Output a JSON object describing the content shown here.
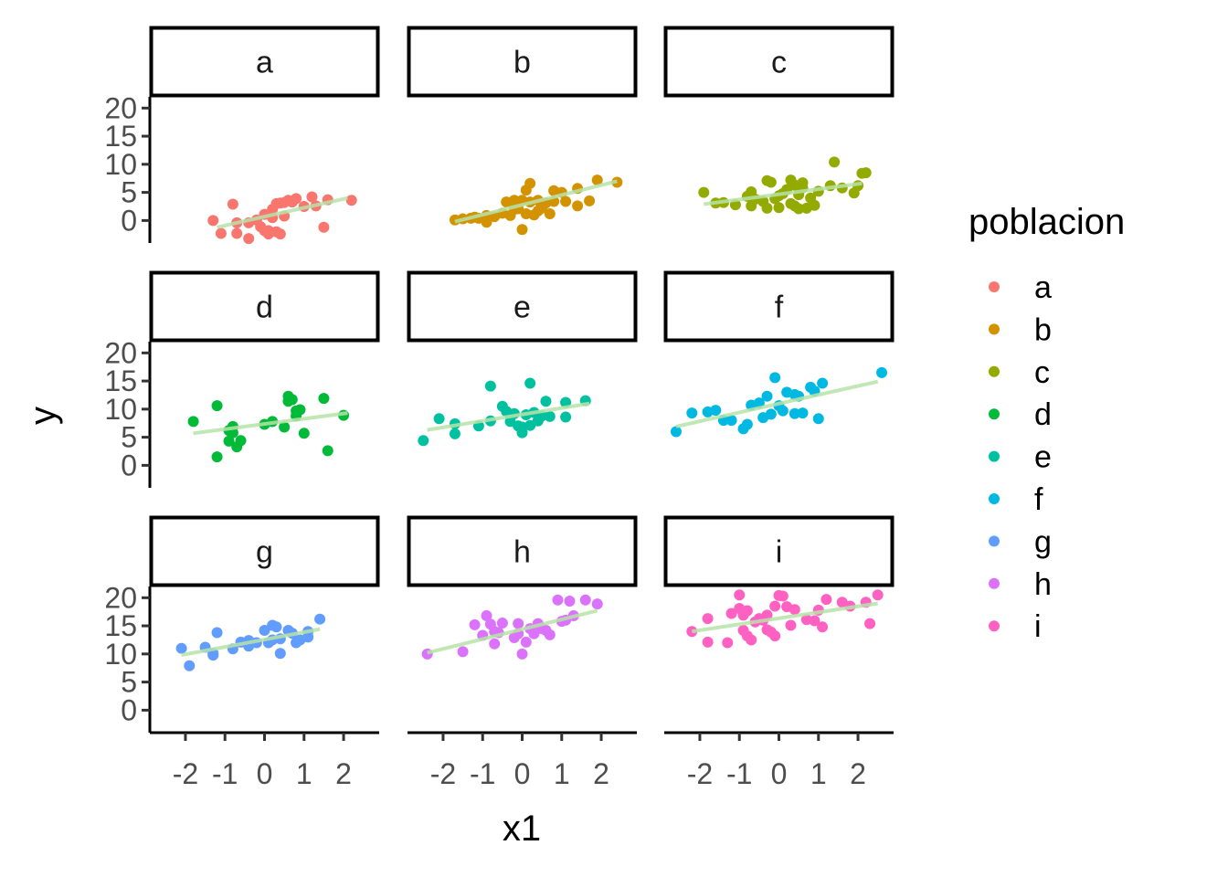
{
  "chart_data": {
    "type": "scatter",
    "facet_by": "poblacion",
    "xlabel": "x1",
    "ylabel": "y",
    "xlim": [
      -2.9,
      2.9
    ],
    "ylim": [
      -4,
      22
    ],
    "xticks": [
      -2,
      -1,
      0,
      1,
      2
    ],
    "xtick_labels": [
      "-2",
      "-1",
      "0",
      "1",
      "2"
    ],
    "yticks": [
      0,
      5,
      10,
      15,
      20
    ],
    "ytick_labels": [
      "0",
      "5",
      "10",
      "15",
      "20"
    ],
    "grid": false,
    "legend": {
      "title": "poblacion",
      "position": "right",
      "entries": [
        "a",
        "b",
        "c",
        "d",
        "e",
        "f",
        "g",
        "h",
        "i"
      ]
    },
    "trend_line_color": "#b6e3a8",
    "panels": [
      {
        "name": "a",
        "color": "#F8766D",
        "trend": {
          "x": [
            -1.2,
            2.1
          ],
          "y": [
            -1.2,
            4.0
          ]
        },
        "points": [
          [
            -1.3,
            0.0
          ],
          [
            -1.1,
            -2.3
          ],
          [
            -0.8,
            2.9
          ],
          [
            -0.7,
            -0.4
          ],
          [
            -0.7,
            -2.3
          ],
          [
            -0.4,
            -3.2
          ],
          [
            -0.4,
            -0.4
          ],
          [
            -0.2,
            0.1
          ],
          [
            -0.1,
            -1.1
          ],
          [
            0.0,
            1.1
          ],
          [
            0.0,
            -1.8
          ],
          [
            0.1,
            -2.4
          ],
          [
            0.1,
            -1.8
          ],
          [
            0.2,
            2.0
          ],
          [
            0.2,
            0.5
          ],
          [
            0.3,
            3.0
          ],
          [
            0.3,
            -2.0
          ],
          [
            0.4,
            3.1
          ],
          [
            0.4,
            -2.4
          ],
          [
            0.5,
            0.8
          ],
          [
            0.5,
            3.2
          ],
          [
            0.6,
            3.6
          ],
          [
            0.7,
            3.3
          ],
          [
            0.8,
            3.9
          ],
          [
            1.0,
            2.5
          ],
          [
            1.2,
            4.2
          ],
          [
            1.3,
            2.6
          ],
          [
            1.5,
            -1.2
          ],
          [
            1.6,
            3.7
          ],
          [
            2.2,
            3.6
          ]
        ]
      },
      {
        "name": "b",
        "color": "#D39200",
        "trend": {
          "x": [
            -1.7,
            2.4
          ],
          "y": [
            -0.2,
            7.0
          ]
        },
        "points": [
          [
            -1.7,
            0.1
          ],
          [
            -1.5,
            0.3
          ],
          [
            -1.3,
            0.4
          ],
          [
            -1.2,
            0.6
          ],
          [
            -1.1,
            0.4
          ],
          [
            -0.9,
            0.9
          ],
          [
            -0.9,
            -0.3
          ],
          [
            -0.7,
            0.7
          ],
          [
            -0.5,
            1.3
          ],
          [
            -0.4,
            3.3
          ],
          [
            -0.3,
            0.9
          ],
          [
            -0.2,
            2.0
          ],
          [
            -0.2,
            3.6
          ],
          [
            -0.1,
            2.1
          ],
          [
            0.0,
            3.6
          ],
          [
            0.0,
            -1.6
          ],
          [
            0.1,
            1.2
          ],
          [
            0.1,
            5.4
          ],
          [
            0.2,
            3.3
          ],
          [
            0.2,
            6.6
          ],
          [
            0.3,
            1.0
          ],
          [
            0.4,
            3.6
          ],
          [
            0.4,
            1.7
          ],
          [
            0.5,
            2.2
          ],
          [
            0.6,
            3.1
          ],
          [
            0.7,
            1.2
          ],
          [
            0.8,
            5.3
          ],
          [
            0.8,
            3.4
          ],
          [
            1.0,
            5.0
          ],
          [
            1.1,
            3.4
          ],
          [
            1.4,
            2.6
          ],
          [
            1.4,
            5.7
          ],
          [
            1.7,
            3.5
          ],
          [
            1.9,
            7.2
          ],
          [
            2.4,
            6.8
          ]
        ]
      },
      {
        "name": "c",
        "color": "#93AA00",
        "trend": {
          "x": [
            -1.9,
            2.1
          ],
          "y": [
            2.9,
            6.6
          ]
        },
        "points": [
          [
            -1.9,
            5.0
          ],
          [
            -1.6,
            3.1
          ],
          [
            -1.4,
            3.2
          ],
          [
            -1.1,
            2.8
          ],
          [
            -0.8,
            4.3
          ],
          [
            -0.7,
            2.6
          ],
          [
            -0.7,
            5.1
          ],
          [
            -0.6,
            3.8
          ],
          [
            -0.4,
            3.4
          ],
          [
            -0.3,
            7.1
          ],
          [
            -0.3,
            2.2
          ],
          [
            -0.2,
            6.8
          ],
          [
            -0.1,
            3.9
          ],
          [
            0.0,
            4.4
          ],
          [
            0.0,
            2.3
          ],
          [
            0.1,
            4.8
          ],
          [
            0.2,
            5.5
          ],
          [
            0.3,
            7.2
          ],
          [
            0.3,
            3.0
          ],
          [
            0.4,
            6.3
          ],
          [
            0.4,
            2.6
          ],
          [
            0.5,
            4.6
          ],
          [
            0.5,
            2.1
          ],
          [
            0.6,
            6.7
          ],
          [
            0.6,
            5.8
          ],
          [
            0.7,
            2.2
          ],
          [
            0.8,
            4.0
          ],
          [
            0.9,
            2.7
          ],
          [
            1.0,
            5.2
          ],
          [
            1.3,
            6.2
          ],
          [
            1.4,
            10.4
          ],
          [
            1.6,
            5.8
          ],
          [
            1.9,
            4.9
          ],
          [
            2.0,
            6.2
          ],
          [
            2.1,
            8.4
          ],
          [
            2.2,
            8.5
          ]
        ]
      },
      {
        "name": "d",
        "color": "#00BA38",
        "trend": {
          "x": [
            -1.8,
            2.1
          ],
          "y": [
            5.7,
            9.3
          ]
        },
        "points": [
          [
            -1.8,
            7.8
          ],
          [
            -1.2,
            10.6
          ],
          [
            -1.2,
            1.5
          ],
          [
            -0.9,
            4.3
          ],
          [
            -0.9,
            6.2
          ],
          [
            -0.8,
            5.8
          ],
          [
            -0.8,
            6.9
          ],
          [
            -0.7,
            3.3
          ],
          [
            -0.6,
            4.4
          ],
          [
            0.0,
            7.3
          ],
          [
            0.2,
            7.8
          ],
          [
            0.5,
            6.8
          ],
          [
            0.6,
            12.3
          ],
          [
            0.6,
            11.4
          ],
          [
            0.7,
            11.7
          ],
          [
            0.8,
            8.8
          ],
          [
            0.8,
            9.7
          ],
          [
            0.9,
            9.9
          ],
          [
            1.0,
            5.7
          ],
          [
            1.5,
            11.9
          ],
          [
            1.6,
            2.6
          ],
          [
            2.0,
            8.9
          ]
        ]
      },
      {
        "name": "e",
        "color": "#00C19F",
        "trend": {
          "x": [
            -2.4,
            1.7
          ],
          "y": [
            6.3,
            11.0
          ]
        },
        "points": [
          [
            -2.5,
            4.4
          ],
          [
            -2.1,
            8.3
          ],
          [
            -1.7,
            5.6
          ],
          [
            -1.7,
            7.4
          ],
          [
            -1.1,
            7.0
          ],
          [
            -0.8,
            14.1
          ],
          [
            -0.8,
            7.9
          ],
          [
            -0.5,
            10.5
          ],
          [
            -0.4,
            9.6
          ],
          [
            -0.3,
            9.0
          ],
          [
            -0.3,
            7.8
          ],
          [
            -0.2,
            9.2
          ],
          [
            -0.1,
            7.0
          ],
          [
            0.0,
            5.8
          ],
          [
            0.0,
            6.8
          ],
          [
            0.1,
            9.0
          ],
          [
            0.2,
            7.1
          ],
          [
            0.2,
            14.6
          ],
          [
            0.3,
            9.4
          ],
          [
            0.4,
            7.9
          ],
          [
            0.5,
            8.8
          ],
          [
            0.6,
            11.4
          ],
          [
            0.7,
            8.7
          ],
          [
            1.1,
            11.2
          ],
          [
            1.1,
            8.6
          ],
          [
            1.6,
            11.5
          ]
        ]
      },
      {
        "name": "f",
        "color": "#00B9E3",
        "trend": {
          "x": [
            -2.6,
            2.5
          ],
          "y": [
            6.9,
            14.9
          ]
        },
        "points": [
          [
            -2.6,
            6.0
          ],
          [
            -2.2,
            9.3
          ],
          [
            -1.8,
            9.5
          ],
          [
            -1.6,
            9.8
          ],
          [
            -1.4,
            8.0
          ],
          [
            -1.2,
            8.0
          ],
          [
            -0.9,
            6.5
          ],
          [
            -0.8,
            7.3
          ],
          [
            -0.7,
            10.7
          ],
          [
            -0.5,
            11.1
          ],
          [
            -0.4,
            8.5
          ],
          [
            -0.3,
            12.3
          ],
          [
            -0.2,
            9.1
          ],
          [
            -0.1,
            15.6
          ],
          [
            0.0,
            10.6
          ],
          [
            0.1,
            9.7
          ],
          [
            0.2,
            13.0
          ],
          [
            0.4,
            12.6
          ],
          [
            0.4,
            9.2
          ],
          [
            0.5,
            12.3
          ],
          [
            0.6,
            9.3
          ],
          [
            0.8,
            13.9
          ],
          [
            0.9,
            13.2
          ],
          [
            1.0,
            8.3
          ],
          [
            1.1,
            14.6
          ],
          [
            2.6,
            16.5
          ]
        ]
      },
      {
        "name": "g",
        "color": "#619CFF",
        "trend": {
          "x": [
            -2.1,
            1.4
          ],
          "y": [
            9.8,
            14.4
          ]
        },
        "points": [
          [
            -2.1,
            11.0
          ],
          [
            -1.9,
            7.9
          ],
          [
            -1.5,
            11.2
          ],
          [
            -1.3,
            9.8
          ],
          [
            -1.3,
            10.1
          ],
          [
            -1.2,
            13.8
          ],
          [
            -0.8,
            10.9
          ],
          [
            -0.6,
            12.1
          ],
          [
            -0.4,
            12.4
          ],
          [
            -0.4,
            11.4
          ],
          [
            -0.2,
            12.0
          ],
          [
            0.0,
            14.2
          ],
          [
            0.1,
            12.0
          ],
          [
            0.2,
            15.1
          ],
          [
            0.2,
            12.5
          ],
          [
            0.3,
            14.8
          ],
          [
            0.4,
            12.7
          ],
          [
            0.4,
            10.1
          ],
          [
            0.6,
            14.2
          ],
          [
            0.7,
            13.7
          ],
          [
            0.8,
            12.0
          ],
          [
            0.9,
            12.5
          ],
          [
            1.1,
            14.0
          ],
          [
            1.1,
            13.0
          ],
          [
            1.4,
            16.2
          ]
        ]
      },
      {
        "name": "h",
        "color": "#DB72FB",
        "trend": {
          "x": [
            -2.4,
            1.9
          ],
          "y": [
            10.2,
            17.7
          ]
        },
        "points": [
          [
            -2.4,
            10.0
          ],
          [
            -1.5,
            10.4
          ],
          [
            -1.2,
            15.2
          ],
          [
            -1.0,
            13.3
          ],
          [
            -0.9,
            16.8
          ],
          [
            -0.8,
            15.3
          ],
          [
            -0.7,
            14.0
          ],
          [
            -0.7,
            11.8
          ],
          [
            -0.6,
            13.8
          ],
          [
            -0.5,
            15.5
          ],
          [
            -0.2,
            12.9
          ],
          [
            -0.1,
            15.4
          ],
          [
            -0.1,
            13.6
          ],
          [
            0.0,
            10.0
          ],
          [
            0.1,
            12.1
          ],
          [
            0.2,
            14.5
          ],
          [
            0.3,
            13.6
          ],
          [
            0.4,
            15.4
          ],
          [
            0.5,
            14.5
          ],
          [
            0.6,
            14.2
          ],
          [
            0.7,
            13.4
          ],
          [
            0.9,
            19.6
          ],
          [
            1.0,
            15.8
          ],
          [
            1.1,
            16.0
          ],
          [
            1.2,
            19.4
          ],
          [
            1.3,
            16.8
          ],
          [
            1.6,
            19.6
          ],
          [
            1.9,
            18.9
          ]
        ]
      },
      {
        "name": "i",
        "color": "#FF61C3",
        "trend": {
          "x": [
            -2.2,
            2.5
          ],
          "y": [
            14.0,
            19.0
          ]
        },
        "points": [
          [
            -2.2,
            14.0
          ],
          [
            -1.8,
            16.3
          ],
          [
            -1.8,
            12.1
          ],
          [
            -1.3,
            12.0
          ],
          [
            -1.2,
            17.2
          ],
          [
            -1.0,
            18.1
          ],
          [
            -1.0,
            20.5
          ],
          [
            -0.9,
            14.2
          ],
          [
            -0.9,
            16.9
          ],
          [
            -0.8,
            13.2
          ],
          [
            -0.8,
            17.7
          ],
          [
            -0.7,
            12.5
          ],
          [
            -0.6,
            15.7
          ],
          [
            -0.5,
            16.3
          ],
          [
            -0.4,
            16.0
          ],
          [
            -0.3,
            14.3
          ],
          [
            -0.3,
            16.9
          ],
          [
            -0.2,
            13.9
          ],
          [
            -0.1,
            18.5
          ],
          [
            -0.1,
            13.2
          ],
          [
            0.0,
            20.4
          ],
          [
            0.1,
            20.3
          ],
          [
            0.2,
            18.4
          ],
          [
            0.3,
            15.1
          ],
          [
            0.4,
            17.9
          ],
          [
            0.7,
            16.1
          ],
          [
            0.9,
            15.9
          ],
          [
            1.0,
            17.8
          ],
          [
            1.1,
            14.8
          ],
          [
            1.2,
            19.7
          ],
          [
            1.6,
            19.2
          ],
          [
            1.8,
            18.5
          ],
          [
            2.2,
            19.2
          ],
          [
            2.3,
            15.4
          ],
          [
            2.5,
            20.5
          ]
        ]
      }
    ]
  }
}
